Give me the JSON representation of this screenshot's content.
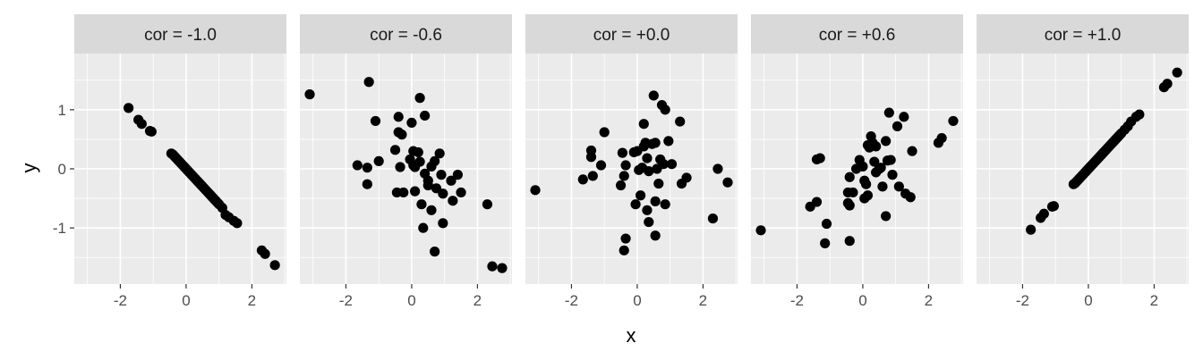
{
  "chart_data": {
    "type": "scatter",
    "xlabel": "x",
    "ylabel": "y",
    "xlim": [
      -3.4,
      3.05
    ],
    "ylim": [
      -1.95,
      1.95
    ],
    "x_ticks": [
      -2,
      0,
      2
    ],
    "y_ticks": [
      -1,
      0,
      1
    ],
    "x_tick_labels": [
      "-2",
      "0",
      "2"
    ],
    "y_tick_labels": [
      "-1",
      "0",
      "1"
    ],
    "grid": true,
    "colors": {
      "panel": "#ebebeb",
      "strip": "#d9d9d9",
      "grid": "#ffffff",
      "point": "#000000",
      "tick": "#333333"
    },
    "panels": [
      {
        "label": "cor = -1.0",
        "points": [
          [
            -1.75,
            1.03
          ],
          [
            -1.45,
            0.83
          ],
          [
            -1.35,
            0.76
          ],
          [
            -1.1,
            0.64
          ],
          [
            -1.05,
            0.63
          ],
          [
            -0.45,
            0.26
          ],
          [
            -0.4,
            0.24
          ],
          [
            -0.35,
            0.21
          ],
          [
            -0.3,
            0.18
          ],
          [
            -0.25,
            0.15
          ],
          [
            -0.2,
            0.12
          ],
          [
            -0.15,
            0.09
          ],
          [
            -0.1,
            0.06
          ],
          [
            -0.05,
            0.03
          ],
          [
            0.0,
            0.0
          ],
          [
            0.05,
            -0.03
          ],
          [
            0.1,
            -0.06
          ],
          [
            0.15,
            -0.09
          ],
          [
            0.2,
            -0.12
          ],
          [
            0.25,
            -0.15
          ],
          [
            0.3,
            -0.18
          ],
          [
            0.35,
            -0.21
          ],
          [
            0.4,
            -0.24
          ],
          [
            0.45,
            -0.27
          ],
          [
            0.5,
            -0.3
          ],
          [
            0.55,
            -0.33
          ],
          [
            0.6,
            -0.36
          ],
          [
            0.65,
            -0.39
          ],
          [
            0.7,
            -0.42
          ],
          [
            0.75,
            -0.45
          ],
          [
            0.8,
            -0.48
          ],
          [
            0.85,
            -0.51
          ],
          [
            0.9,
            -0.54
          ],
          [
            0.95,
            -0.57
          ],
          [
            1.0,
            -0.6
          ],
          [
            1.1,
            -0.66
          ],
          [
            1.2,
            -0.78
          ],
          [
            1.3,
            -0.82
          ],
          [
            1.45,
            -0.88
          ],
          [
            1.55,
            -0.92
          ],
          [
            2.3,
            -1.38
          ],
          [
            2.4,
            -1.44
          ],
          [
            2.7,
            -1.63
          ]
        ]
      },
      {
        "label": "cor = -0.6",
        "points": [
          [
            -3.1,
            1.26
          ],
          [
            -1.3,
            1.47
          ],
          [
            -1.1,
            0.81
          ],
          [
            -1.65,
            0.06
          ],
          [
            -1.35,
            0.02
          ],
          [
            -1.35,
            -0.26
          ],
          [
            -1.0,
            0.13
          ],
          [
            -0.4,
            0.88
          ],
          [
            -0.4,
            0.62
          ],
          [
            -0.3,
            0.58
          ],
          [
            0.0,
            0.78
          ],
          [
            0.25,
            1.2
          ],
          [
            0.4,
            0.9
          ],
          [
            -0.5,
            0.32
          ],
          [
            -0.35,
            0.03
          ],
          [
            -0.05,
            0.16
          ],
          [
            0.05,
            0.3
          ],
          [
            0.2,
            0.28
          ],
          [
            0.05,
            0.06
          ],
          [
            0.1,
            0.03
          ],
          [
            0.25,
            0.12
          ],
          [
            0.4,
            -0.08
          ],
          [
            0.5,
            -0.28
          ],
          [
            0.6,
            0.04
          ],
          [
            0.7,
            0.13
          ],
          [
            0.85,
            0.26
          ],
          [
            0.9,
            -0.1
          ],
          [
            0.75,
            -0.33
          ],
          [
            0.95,
            -0.42
          ],
          [
            1.2,
            -0.2
          ],
          [
            1.25,
            -0.54
          ],
          [
            1.4,
            -0.1
          ],
          [
            1.5,
            -0.4
          ],
          [
            -0.45,
            -0.4
          ],
          [
            -0.25,
            -0.4
          ],
          [
            0.1,
            -0.38
          ],
          [
            0.3,
            -0.6
          ],
          [
            0.5,
            -0.2
          ],
          [
            0.6,
            -0.7
          ],
          [
            0.35,
            -1.0
          ],
          [
            0.95,
            -0.92
          ],
          [
            0.7,
            -1.4
          ],
          [
            2.3,
            -0.6
          ],
          [
            2.45,
            -1.65
          ],
          [
            2.75,
            -1.68
          ]
        ]
      },
      {
        "label": "cor = +0.0",
        "points": [
          [
            -3.1,
            -0.36
          ],
          [
            -1.65,
            -0.18
          ],
          [
            -1.4,
            0.31
          ],
          [
            -1.4,
            0.2
          ],
          [
            -1.35,
            -0.12
          ],
          [
            -1.0,
            0.62
          ],
          [
            -1.1,
            0.06
          ],
          [
            -0.45,
            0.27
          ],
          [
            -0.5,
            -0.28
          ],
          [
            -0.4,
            -0.12
          ],
          [
            -0.35,
            0.06
          ],
          [
            -0.35,
            -1.18
          ],
          [
            -0.4,
            -1.38
          ],
          [
            -0.1,
            0.28
          ],
          [
            0.0,
            0.3
          ],
          [
            0.05,
            -0.02
          ],
          [
            0.15,
            0.02
          ],
          [
            0.2,
            0.38
          ],
          [
            0.25,
            0.44
          ],
          [
            0.3,
            0.18
          ],
          [
            0.35,
            -0.04
          ],
          [
            0.45,
            0.42
          ],
          [
            0.55,
            0.44
          ],
          [
            0.6,
            0.0
          ],
          [
            0.65,
            -0.25
          ],
          [
            0.7,
            0.16
          ],
          [
            0.8,
            0.08
          ],
          [
            0.95,
            0.47
          ],
          [
            1.05,
            0.08
          ],
          [
            0.5,
            1.24
          ],
          [
            0.75,
            1.08
          ],
          [
            0.85,
            1.0
          ],
          [
            0.2,
            0.76
          ],
          [
            1.3,
            0.8
          ],
          [
            -0.05,
            -0.6
          ],
          [
            0.1,
            -0.45
          ],
          [
            0.3,
            -0.7
          ],
          [
            0.35,
            -0.9
          ],
          [
            0.55,
            -1.13
          ],
          [
            0.55,
            -0.55
          ],
          [
            0.85,
            -0.6
          ],
          [
            1.35,
            -0.25
          ],
          [
            1.5,
            -0.15
          ],
          [
            2.3,
            -0.84
          ],
          [
            2.45,
            0.0
          ],
          [
            2.75,
            -0.23
          ]
        ]
      },
      {
        "label": "cor = +0.6",
        "points": [
          [
            -3.1,
            -1.04
          ],
          [
            -1.6,
            -0.64
          ],
          [
            -1.4,
            -0.56
          ],
          [
            -1.4,
            0.16
          ],
          [
            -1.3,
            0.18
          ],
          [
            -1.1,
            -0.93
          ],
          [
            -1.15,
            -1.26
          ],
          [
            -0.4,
            -1.22
          ],
          [
            -0.45,
            -0.4
          ],
          [
            -0.45,
            -0.58
          ],
          [
            -0.4,
            -0.62
          ],
          [
            -0.4,
            -0.14
          ],
          [
            -0.3,
            -0.4
          ],
          [
            -0.2,
            0.0
          ],
          [
            -0.1,
            0.15
          ],
          [
            0.0,
            0.04
          ],
          [
            0.05,
            -0.2
          ],
          [
            0.05,
            -0.5
          ],
          [
            0.1,
            -0.26
          ],
          [
            0.15,
            0.4
          ],
          [
            0.2,
            0.36
          ],
          [
            0.25,
            0.55
          ],
          [
            0.3,
            0.44
          ],
          [
            0.35,
            0.12
          ],
          [
            0.4,
            0.38
          ],
          [
            0.4,
            -0.06
          ],
          [
            0.5,
            0.0
          ],
          [
            0.55,
            0.02
          ],
          [
            0.6,
            -0.3
          ],
          [
            0.7,
            0.47
          ],
          [
            0.75,
            0.14
          ],
          [
            0.8,
            0.95
          ],
          [
            0.9,
            -0.1
          ],
          [
            0.85,
            0.15
          ],
          [
            0.7,
            -0.8
          ],
          [
            1.05,
            0.72
          ],
          [
            1.25,
            0.88
          ],
          [
            1.1,
            -0.3
          ],
          [
            1.3,
            -0.42
          ],
          [
            1.45,
            -0.48
          ],
          [
            1.5,
            0.3
          ],
          [
            0.15,
            -0.45
          ],
          [
            2.3,
            0.44
          ],
          [
            2.4,
            0.52
          ],
          [
            2.75,
            0.81
          ]
        ]
      },
      {
        "label": "cor = +1.0",
        "points": [
          [
            -1.75,
            -1.03
          ],
          [
            -1.45,
            -0.83
          ],
          [
            -1.35,
            -0.76
          ],
          [
            -1.1,
            -0.64
          ],
          [
            -1.05,
            -0.63
          ],
          [
            -0.45,
            -0.26
          ],
          [
            -0.4,
            -0.24
          ],
          [
            -0.35,
            -0.21
          ],
          [
            -0.3,
            -0.18
          ],
          [
            -0.25,
            -0.15
          ],
          [
            -0.2,
            -0.12
          ],
          [
            -0.15,
            -0.09
          ],
          [
            -0.1,
            -0.06
          ],
          [
            -0.05,
            -0.03
          ],
          [
            0.0,
            0.0
          ],
          [
            0.05,
            0.03
          ],
          [
            0.1,
            0.06
          ],
          [
            0.15,
            0.09
          ],
          [
            0.2,
            0.12
          ],
          [
            0.25,
            0.15
          ],
          [
            0.3,
            0.18
          ],
          [
            0.35,
            0.21
          ],
          [
            0.4,
            0.24
          ],
          [
            0.45,
            0.27
          ],
          [
            0.5,
            0.3
          ],
          [
            0.55,
            0.33
          ],
          [
            0.6,
            0.36
          ],
          [
            0.65,
            0.39
          ],
          [
            0.7,
            0.42
          ],
          [
            0.75,
            0.45
          ],
          [
            0.8,
            0.48
          ],
          [
            0.85,
            0.51
          ],
          [
            0.9,
            0.54
          ],
          [
            0.95,
            0.57
          ],
          [
            1.0,
            0.6
          ],
          [
            1.1,
            0.66
          ],
          [
            1.2,
            0.72
          ],
          [
            1.3,
            0.8
          ],
          [
            1.45,
            0.88
          ],
          [
            1.55,
            0.92
          ],
          [
            2.3,
            1.38
          ],
          [
            2.4,
            1.44
          ],
          [
            2.7,
            1.63
          ]
        ]
      }
    ]
  }
}
